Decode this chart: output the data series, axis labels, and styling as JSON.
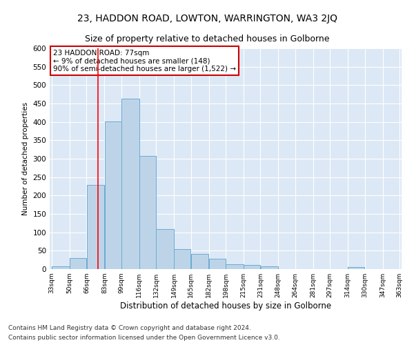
{
  "title": "23, HADDON ROAD, LOWTON, WARRINGTON, WA3 2JQ",
  "subtitle": "Size of property relative to detached houses in Golborne",
  "xlabel": "Distribution of detached houses by size in Golborne",
  "ylabel": "Number of detached properties",
  "annotation_line1": "23 HADDON ROAD: 77sqm",
  "annotation_line2": "← 9% of detached houses are smaller (148)",
  "annotation_line3": "90% of semi-detached houses are larger (1,522) →",
  "footer_line1": "Contains HM Land Registry data © Crown copyright and database right 2024.",
  "footer_line2": "Contains public sector information licensed under the Open Government Licence v3.0.",
  "bar_values": [
    7,
    30,
    228,
    402,
    463,
    307,
    108,
    54,
    41,
    28,
    14,
    12,
    8,
    0,
    0,
    0,
    0,
    5,
    0,
    0
  ],
  "bin_edges": [
    33,
    50,
    66,
    83,
    99,
    116,
    132,
    149,
    165,
    182,
    198,
    215,
    231,
    248,
    264,
    281,
    297,
    314,
    330,
    347,
    363
  ],
  "x_tick_labels": [
    "33sqm",
    "50sqm",
    "66sqm",
    "83sqm",
    "99sqm",
    "116sqm",
    "132sqm",
    "149sqm",
    "165sqm",
    "182sqm",
    "198sqm",
    "215sqm",
    "231sqm",
    "248sqm",
    "264sqm",
    "281sqm",
    "297sqm",
    "314sqm",
    "330sqm",
    "347sqm",
    "363sqm"
  ],
  "bar_color": "#bdd4e8",
  "bar_edge_color": "#6aaad4",
  "red_line_x": 77,
  "ylim": [
    0,
    600
  ],
  "yticks": [
    0,
    50,
    100,
    150,
    200,
    250,
    300,
    350,
    400,
    450,
    500,
    550,
    600
  ],
  "bg_color": "#ffffff",
  "plot_bg_color": "#dce8f5",
  "grid_color": "#ffffff",
  "title_fontsize": 10,
  "subtitle_fontsize": 9,
  "annotation_box_color": "#cc0000",
  "annotation_text_color": "#000000",
  "footer_fontsize": 6.5
}
